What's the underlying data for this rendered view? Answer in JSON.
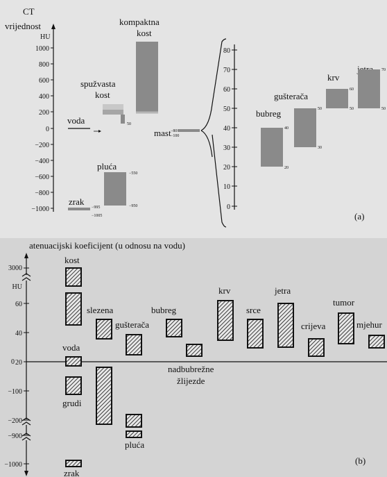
{
  "panel_a": {
    "ylabel_line1": "CT",
    "ylabel_line2": "vrijednost",
    "unit": "HU",
    "letter": "(a)",
    "left_ticks": [
      "1000",
      "800",
      "600",
      "400",
      "200",
      "0",
      "−200",
      "−400",
      "−600",
      "−800",
      "−1000"
    ],
    "right_ticks": [
      "80",
      "70",
      "60",
      "50",
      "40",
      "30",
      "20",
      "10",
      "0"
    ],
    "tissues": {
      "kompaktna_line1": "kompaktna",
      "kompaktna_line2": "kost",
      "spuzvasta_line1": "spužvasta",
      "spuzvasta_line2": "kost",
      "spuzvasta_value": "50",
      "voda": "voda",
      "mast": "mast",
      "mast_value1": "−80",
      "mast_value2": "−100",
      "pluca": "pluća",
      "pluca_value_top": "−550",
      "pluca_value_bottom": "−950",
      "zrak": "zrak",
      "zrak_value1": "−995",
      "zrak_value2": "−1005",
      "bubreg": "bubreg",
      "bubreg_top": "40",
      "bubreg_bottom": "20",
      "gusteraca": "gušterača",
      "gusteraca_top": "50",
      "gusteraca_bottom": "30",
      "krv": "krv",
      "krv_top": "60",
      "krv_bottom": "50",
      "jetra": "jetra",
      "jetra_top": "70",
      "jetra_bottom": "50"
    }
  },
  "panel_b": {
    "title": "atenuacijski koeficijent (u odnosu na vodu)",
    "letter": "(b)",
    "ticks": [
      "3000",
      "HU",
      "60",
      "40",
      "20",
      "0",
      "−100",
      "−200",
      "−900",
      "−1000"
    ],
    "tissues": {
      "kost": "kost",
      "slezena": "slezena",
      "gusteraca": "gušterača",
      "bubreg": "bubreg",
      "nadbubrezne_line1": "nadbubrežne",
      "nadbubrezne_line2": "žlijezde",
      "krv": "krv",
      "srce": "srce",
      "jetra": "jetra",
      "crijeva": "crijeva",
      "tumor": "tumor",
      "mjehur": "mjehur",
      "voda": "voda",
      "grudi": "grudi",
      "pluca": "pluća",
      "zrak": "zrak"
    }
  },
  "colors": {
    "bar_fill": "#8a8a8a",
    "background_top": "#e4e4e4",
    "background_bottom": "#d4d4d4",
    "ink": "#111111"
  }
}
